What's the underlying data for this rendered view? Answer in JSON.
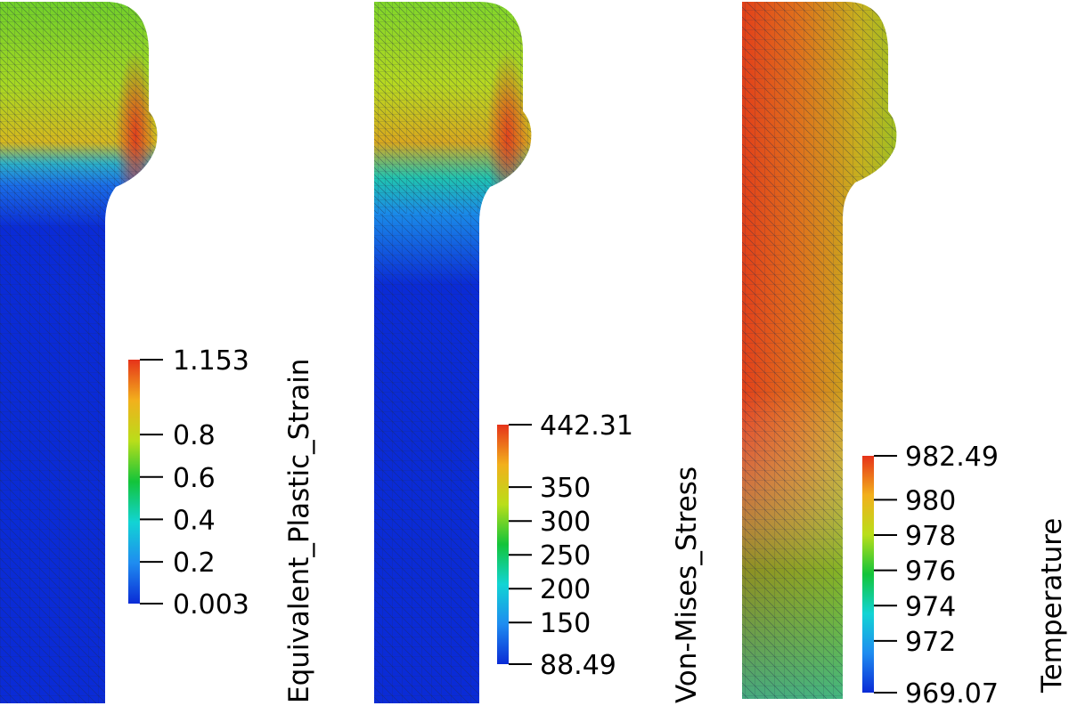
{
  "colors": {
    "ramp": [
      "#0a2bd6",
      "#1f8cf0",
      "#12d4d4",
      "#13c43a",
      "#b9de1a",
      "#f2b01c",
      "#e6331a"
    ],
    "mesh_line": "#1e2a4a"
  },
  "panels": [
    {
      "field": "Equivalent_Plastic_Strain",
      "legend": {
        "title": "Equivalent_Plastic_Strain",
        "min": 0.003,
        "max": 1.153,
        "ticks": [
          {
            "value": 1.153,
            "label": "1.153"
          },
          {
            "value": 0.8,
            "label": "0.8"
          },
          {
            "value": 0.6,
            "label": "0.6"
          },
          {
            "value": 0.4,
            "label": "0.4"
          },
          {
            "value": 0.2,
            "label": "0.2"
          },
          {
            "value": 0.003,
            "label": "0.003"
          }
        ]
      }
    },
    {
      "field": "Von-Mises_Stress",
      "legend": {
        "title": "Von-Mises_Stress",
        "min": 88.49,
        "max": 442.31,
        "ticks": [
          {
            "value": 442.31,
            "label": "442.31"
          },
          {
            "value": 350,
            "label": "350"
          },
          {
            "value": 300,
            "label": "300"
          },
          {
            "value": 250,
            "label": "250"
          },
          {
            "value": 200,
            "label": "200"
          },
          {
            "value": 150,
            "label": "150"
          },
          {
            "value": 88.49,
            "label": "88.49"
          }
        ]
      }
    },
    {
      "field": "Temperature",
      "legend": {
        "title": "Temperature",
        "min": 969.07,
        "max": 982.49,
        "ticks": [
          {
            "value": 982.49,
            "label": "982.49"
          },
          {
            "value": 980,
            "label": "980"
          },
          {
            "value": 978,
            "label": "978"
          },
          {
            "value": 976,
            "label": "976"
          },
          {
            "value": 974,
            "label": "974"
          },
          {
            "value": 972,
            "label": "972"
          },
          {
            "value": 969.07,
            "label": "969.07"
          }
        ]
      }
    }
  ]
}
